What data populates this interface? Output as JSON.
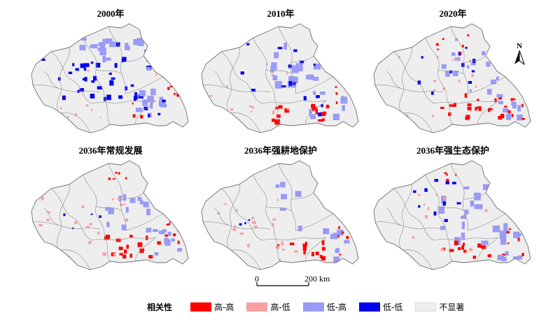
{
  "panels": [
    {
      "title": "2000年",
      "pattern": "2000"
    },
    {
      "title": "2010年",
      "pattern": "2010"
    },
    {
      "title": "2020年",
      "pattern": "2020"
    },
    {
      "title": "2036年常规发展",
      "pattern": "normal"
    },
    {
      "title": "2036年强耕地保护",
      "pattern": "cropland"
    },
    {
      "title": "2036年强生态保护",
      "pattern": "ecology"
    }
  ],
  "north_arrow": {
    "label": "N"
  },
  "scale_bar": {
    "start_label": "0",
    "end_label": "200 km"
  },
  "legend": {
    "title": "相关性",
    "items": [
      {
        "label": "高-高",
        "color": "#ff0000"
      },
      {
        "label": "高-低",
        "color": "#f7a1a1"
      },
      {
        "label": "低-高",
        "color": "#9a9af7"
      },
      {
        "label": "低-低",
        "color": "#0000ee"
      },
      {
        "label": "不显著",
        "color": "#eeeeee"
      }
    ]
  }
}
